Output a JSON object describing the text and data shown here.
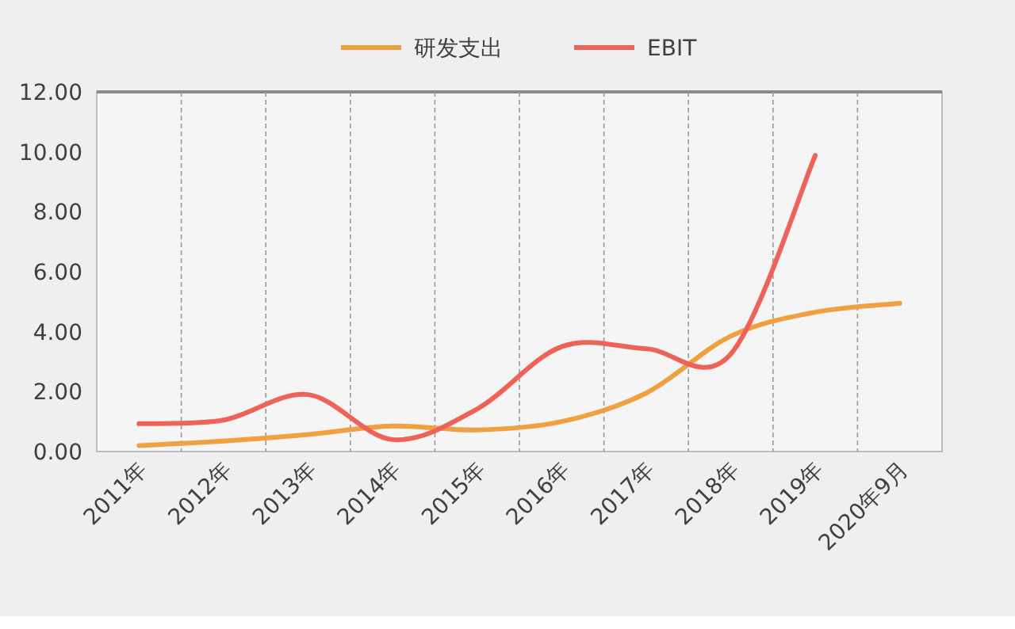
{
  "chart_data": {
    "type": "line",
    "categories": [
      "2011年",
      "2012年",
      "2013年",
      "2014年",
      "2015年",
      "2016年",
      "2017年",
      "2018年",
      "2019年",
      "2020年9月"
    ],
    "series": [
      {
        "name": "研发支出",
        "color": "#f0a040",
        "values": [
          0.2,
          0.35,
          0.57,
          0.85,
          0.72,
          1.0,
          1.95,
          3.85,
          4.65,
          4.95
        ]
      },
      {
        "name": "EBIT",
        "color": "#ef6258",
        "values": [
          0.93,
          1.05,
          1.9,
          0.4,
          1.42,
          3.5,
          3.43,
          3.25,
          9.88,
          null
        ]
      }
    ],
    "ylim": [
      0,
      12
    ],
    "yticks": [
      {
        "value": 0,
        "label": "0.00"
      },
      {
        "value": 2,
        "label": "2.00"
      },
      {
        "value": 4,
        "label": "4.00"
      },
      {
        "value": 6,
        "label": "6.00"
      },
      {
        "value": 8,
        "label": "8.00"
      },
      {
        "value": 10,
        "label": "10.00"
      },
      {
        "value": 12,
        "label": "12.00"
      }
    ],
    "grid": "x",
    "legend": "top",
    "marker": "none",
    "line_style": "solid"
  }
}
